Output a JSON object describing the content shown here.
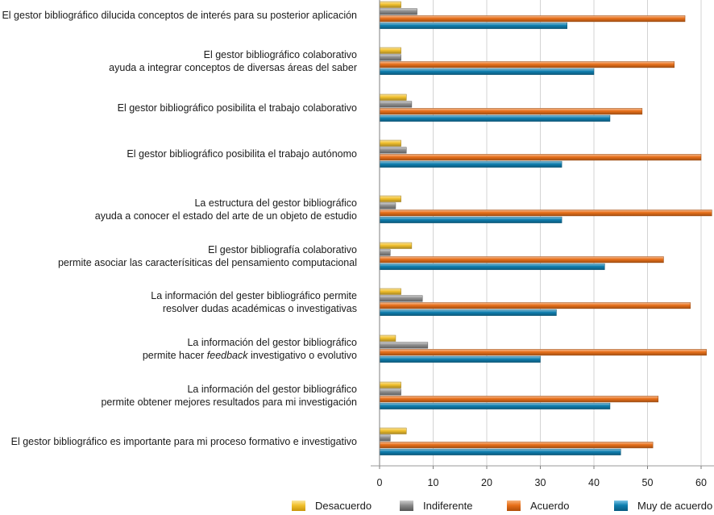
{
  "chart_data": {
    "type": "bar",
    "orientation": "horizontal",
    "title": "",
    "xlabel": "",
    "ylabel": "",
    "xlim": [
      0,
      62
    ],
    "ticks": [
      "0",
      "10",
      "20",
      "30",
      "40",
      "50",
      "60"
    ],
    "grid": true,
    "legend_position": "bottom",
    "categories": [
      [
        "El gestor bibliográfico dilucida conceptos de interés para su posterior aplicación"
      ],
      [
        "El gestor bibliográfico colaborativo",
        "ayuda a integrar conceptos de diversas áreas del saber"
      ],
      [
        "El gestor bibliográfico posibilita el trabajo colaborativo"
      ],
      [
        "El gestor bibliográfico posibilita el trabajo autónomo"
      ],
      [
        "La estructura del gestor bibliográfico",
        "ayuda a conocer el estado del arte de un objeto de estudio"
      ],
      [
        "El gestor bibliografía colaborativo",
        "permite asociar las caracterísiticas del pensamiento computacional"
      ],
      [
        "La información del gester bibliográfico permite",
        "resolver dudas académicas o investigativas"
      ],
      [
        "La información del gestor bibliográfico",
        "permite hacer |feedback| investigativo o evolutivo"
      ],
      [
        "La información del gestor bibliográfico",
        "permite obtener mejores resultados para mi investigación"
      ],
      [
        "El gestor bibliográfico es importante para mi proceso formativo e investigativo"
      ]
    ],
    "series": [
      {
        "name": "Desacuerdo",
        "color": "#f2c12e",
        "values": [
          4,
          4,
          5,
          4,
          4,
          6,
          4,
          3,
          4,
          5
        ]
      },
      {
        "name": "Indiferente",
        "color": "#8c8c8c",
        "values": [
          7,
          4,
          6,
          5,
          3,
          2,
          8,
          9,
          4,
          2
        ]
      },
      {
        "name": "Acuerdo",
        "color": "#e8701a",
        "values": [
          57,
          55,
          49,
          60,
          62,
          53,
          58,
          61,
          52,
          51
        ]
      },
      {
        "name": "Muy de acuerdo",
        "color": "#0f7fb0",
        "values": [
          35,
          40,
          43,
          34,
          34,
          42,
          33,
          30,
          43,
          45
        ]
      }
    ]
  }
}
